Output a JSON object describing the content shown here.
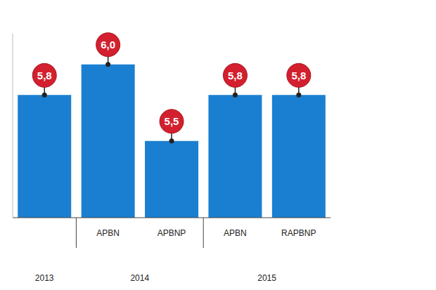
{
  "chart_data": {
    "type": "bar",
    "categories": [
      null,
      "APBN",
      "APBNP",
      "APBN",
      "RAPBNP"
    ],
    "x_groups": [
      {
        "label": "2013",
        "start": 0,
        "end": 0
      },
      {
        "label": "2014",
        "start": 1,
        "end": 2
      },
      {
        "label": "2015",
        "start": 3,
        "end": 4
      }
    ],
    "values": [
      5.8,
      6.0,
      5.5,
      5.8,
      5.8
    ],
    "value_labels": [
      "5,8",
      "6,0",
      "5,5",
      "5,8",
      "5,8"
    ],
    "color": "#1b7fd1",
    "ylim": [
      5,
      6.2
    ],
    "data_labels": true,
    "tick_labels": "x",
    "grid": false
  }
}
